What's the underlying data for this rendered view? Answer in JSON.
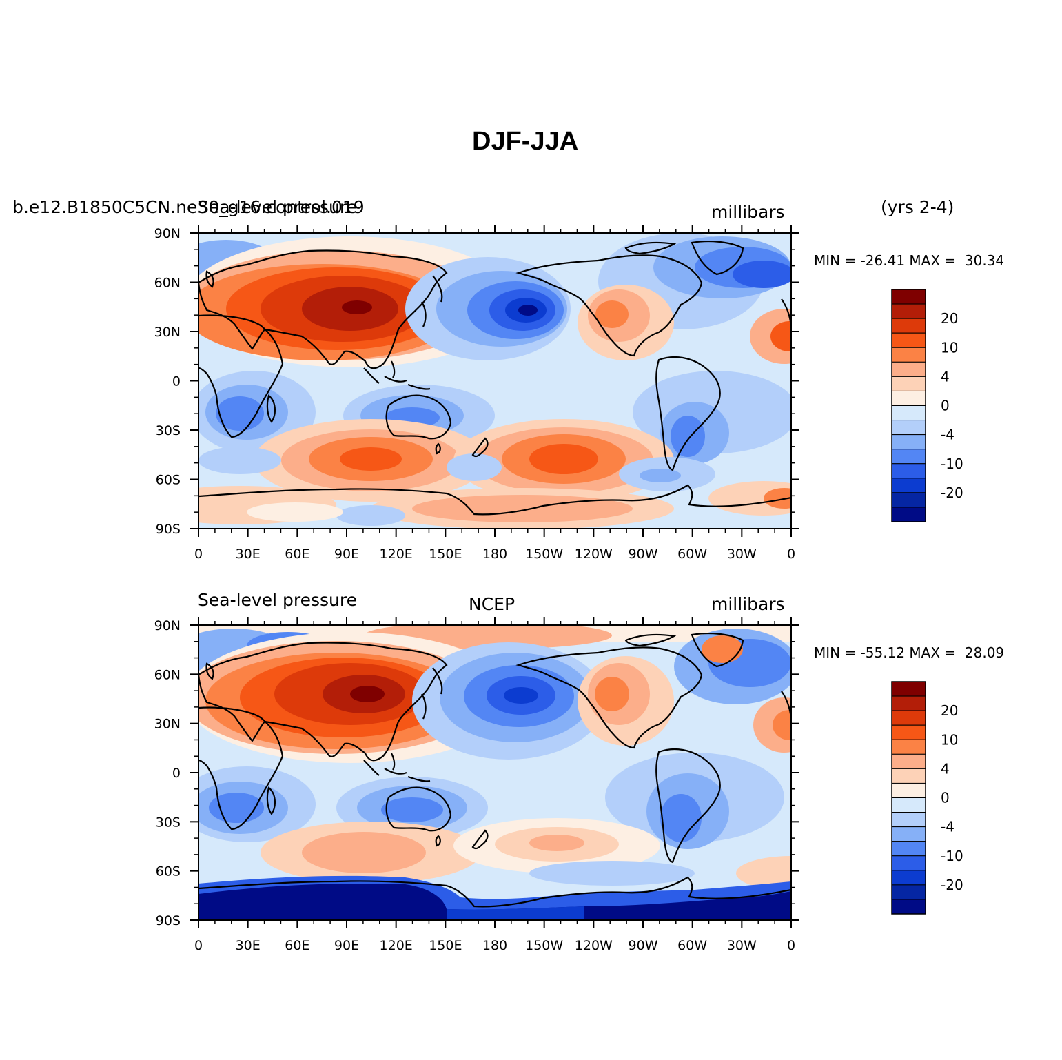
{
  "title": "DJF-JJA",
  "panels": [
    {
      "left_label": "b.e12.B1850C5CN.ne30_g16.control.019",
      "left_label_overlay": "Sea-level pressure",
      "center_label": "",
      "right_label": "millibars",
      "extra_label": "(yrs 2-4)",
      "stats_label": "MIN = -26.41 MAX =  30.34",
      "min": -26.41,
      "max": 30.34
    },
    {
      "left_label": "Sea-level pressure",
      "center_label": "NCEP",
      "right_label": "millibars",
      "stats_label": "MIN = -55.12 MAX =  28.09",
      "min": -55.12,
      "max": 28.09
    }
  ],
  "lat_ticks": [
    "90N",
    "60N",
    "30N",
    "0",
    "30S",
    "60S",
    "90S"
  ],
  "lon_ticks": [
    "0",
    "30E",
    "60E",
    "90E",
    "120E",
    "150E",
    "180",
    "150W",
    "120W",
    "90W",
    "60W",
    "30W",
    "0"
  ],
  "colorbar": {
    "labels": [
      "20",
      "10",
      "4",
      "0",
      "-4",
      "-10",
      "-20"
    ],
    "colors": [
      "#7f0000",
      "#b31e08",
      "#dd3a0a",
      "#f65716",
      "#fb8245",
      "#fcae8a",
      "#fdd2b7",
      "#fdefe3",
      "#d6e9fb",
      "#b3cffa",
      "#86b0f7",
      "#5386f4",
      "#2c5de8",
      "#0c3cd0",
      "#0526a3",
      "#000b86"
    ]
  }
}
